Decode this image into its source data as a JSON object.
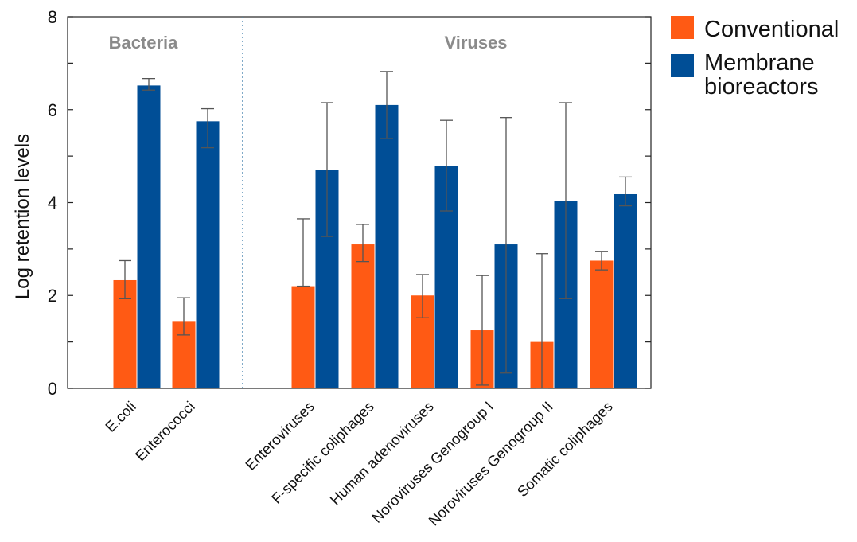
{
  "chart_data": {
    "type": "bar",
    "ylabel": "Log retention levels",
    "ylim": [
      0,
      8
    ],
    "yticks": [
      "0",
      "2",
      "4",
      "6",
      "8"
    ],
    "groups": [
      {
        "name": "Bacteria",
        "categories": [
          "E.coli",
          "Enterococci"
        ]
      },
      {
        "name": "Viruses",
        "categories": [
          "Enteroviruses",
          "F-specific coliphages",
          "Human adenoviruses",
          "Noroviruses Genogroup I",
          "Noroviruses Genogroup II",
          "Somatic coliphages"
        ]
      }
    ],
    "categories": [
      "E.coli",
      "Enterococci",
      "Enteroviruses",
      "F-specific coliphages",
      "Human adenoviruses",
      "Noroviruses Genogroup I",
      "Noroviruses Genogroup II",
      "Somatic coliphages"
    ],
    "series": [
      {
        "name": "Conventional",
        "color": "#ff5a14",
        "values": [
          2.33,
          1.45,
          2.2,
          3.1,
          2.0,
          1.25,
          1.0,
          2.75
        ],
        "err_low": [
          1.93,
          1.15,
          2.2,
          2.73,
          1.52,
          0.07,
          0.0,
          2.55
        ],
        "err_high": [
          2.75,
          1.95,
          3.65,
          3.53,
          2.45,
          2.43,
          2.9,
          2.95
        ]
      },
      {
        "name": "Membrane bioreactors",
        "color": "#004e96",
        "values": [
          6.52,
          5.75,
          4.7,
          6.1,
          4.78,
          3.1,
          4.03,
          4.18
        ],
        "err_low": [
          6.42,
          5.18,
          3.27,
          5.38,
          3.82,
          0.33,
          1.93,
          3.93
        ],
        "err_high": [
          6.67,
          6.02,
          6.15,
          6.82,
          5.77,
          5.83,
          6.15,
          4.55
        ]
      }
    ],
    "legend": [
      "Conventional",
      "Membrane",
      "bioreactors"
    ],
    "grid": false,
    "legend_position": "top-right"
  }
}
